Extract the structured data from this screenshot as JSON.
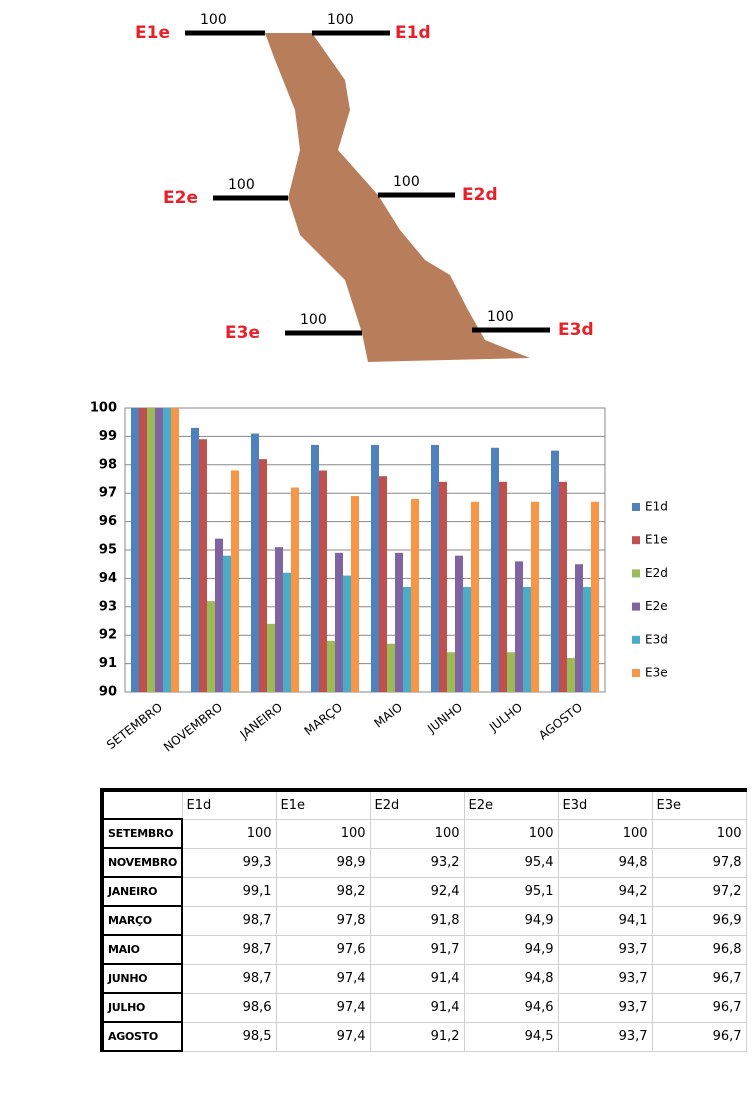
{
  "diagram": {
    "labels": [
      {
        "name": "E1e",
        "value": 100
      },
      {
        "name": "E1d",
        "value": 100
      },
      {
        "name": "E2e",
        "value": 100
      },
      {
        "name": "E2d",
        "value": 100
      },
      {
        "name": "E3e",
        "value": 100
      },
      {
        "name": "E3d",
        "value": 100
      }
    ]
  },
  "chart_data": {
    "type": "bar",
    "categories": [
      "SETEMBRO",
      "NOVEMBRO",
      "JANEIRO",
      "MARÇO",
      "MAIO",
      "JUNHO",
      "JULHO",
      "AGOSTO"
    ],
    "series": [
      {
        "name": "E1d",
        "color": "#4f81bd",
        "values": [
          100,
          99.3,
          99.1,
          98.7,
          98.7,
          98.7,
          98.6,
          98.5
        ]
      },
      {
        "name": "E1e",
        "color": "#c0504d",
        "values": [
          100,
          98.9,
          98.2,
          97.8,
          97.6,
          97.4,
          97.4,
          97.4
        ]
      },
      {
        "name": "E2d",
        "color": "#9bbb59",
        "values": [
          100,
          93.2,
          92.4,
          91.8,
          91.7,
          91.4,
          91.4,
          91.2
        ]
      },
      {
        "name": "E2e",
        "color": "#8064a2",
        "values": [
          100,
          95.4,
          95.1,
          94.9,
          94.9,
          94.8,
          94.6,
          94.5
        ]
      },
      {
        "name": "E3d",
        "color": "#4bacc6",
        "values": [
          100,
          94.8,
          94.2,
          94.1,
          93.7,
          93.7,
          93.7,
          93.7
        ]
      },
      {
        "name": "E3e",
        "color": "#f79646",
        "values": [
          100,
          97.8,
          97.2,
          96.9,
          96.8,
          96.7,
          96.7,
          96.7
        ]
      }
    ],
    "ylim": [
      90,
      100
    ],
    "yticks": [
      90,
      91,
      92,
      93,
      94,
      95,
      96,
      97,
      98,
      99,
      100
    ],
    "grid": true,
    "legend": "right"
  },
  "table": {
    "columns": [
      "E1d",
      "E1e",
      "E2d",
      "E2e",
      "E3d",
      "E3e"
    ],
    "rows": [
      [
        "SETEMBRO",
        "100",
        "100",
        "100",
        "100",
        "100",
        "100"
      ],
      [
        "NOVEMBRO",
        "99,3",
        "98,9",
        "93,2",
        "95,4",
        "94,8",
        "97,8"
      ],
      [
        "JANEIRO",
        "99,1",
        "98,2",
        "92,4",
        "95,1",
        "94,2",
        "97,2"
      ],
      [
        "MARÇO",
        "98,7",
        "97,8",
        "91,8",
        "94,9",
        "94,1",
        "96,9"
      ],
      [
        "MAIO",
        "98,7",
        "97,6",
        "91,7",
        "94,9",
        "93,7",
        "96,8"
      ],
      [
        "JUNHO",
        "98,7",
        "97,4",
        "91,4",
        "94,8",
        "93,7",
        "96,7"
      ],
      [
        "JULHO",
        "98,6",
        "97,4",
        "91,4",
        "94,6",
        "93,7",
        "96,7"
      ],
      [
        "AGOSTO",
        "98,5",
        "97,4",
        "91,2",
        "94,5",
        "93,7",
        "96,7"
      ]
    ]
  }
}
